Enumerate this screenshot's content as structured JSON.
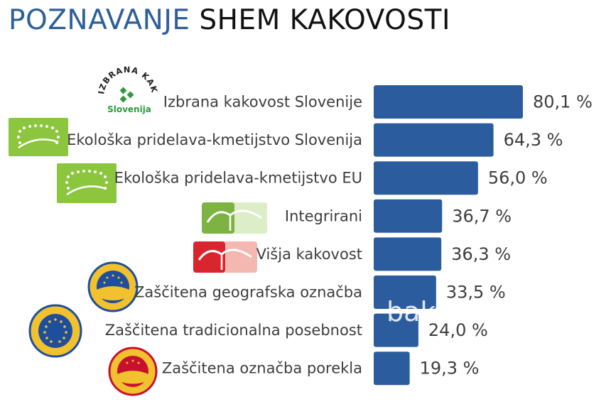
{
  "title": {
    "part1": "POZNAVANJE",
    "part2": "SHEM KAKOVOSTI"
  },
  "colors": {
    "title_accent": "#2e5f98",
    "bar": "#2b5c9d",
    "eu_green": "#8cc63f",
    "integ_green": "#7cb342",
    "visja_red": "#d9262e",
    "pgi_blue": "#1f4f9c",
    "pdo_red": "#c8102e",
    "gold": "#f2c12e"
  },
  "logo_text": {
    "izbrana": "IZBRANA KAKOVOST",
    "slovenija": "Slovenija"
  },
  "chart_data": {
    "type": "bar",
    "orientation": "horizontal",
    "categories": [
      "Izbrana kakovost Slovenije",
      "Ekološka pridelava-kmetijstvo Slovenija",
      "Ekološka pridelava-kmetijstvo EU",
      "Integrirani",
      "Višja kakovost",
      "Zaščitena geografska označba",
      "Zaščitena tradicionalna posebnost",
      "Zaščitena označba porekla"
    ],
    "values": [
      80.1,
      64.3,
      56.0,
      36.7,
      36.3,
      33.5,
      24.0,
      19.3
    ],
    "value_labels": [
      "80,1 %",
      "64,3 %",
      "56,0 %",
      "36,7 %",
      "36,3 %",
      "33,5 %",
      "24,0 %",
      "19,3 %"
    ],
    "logos": [
      "izbrana-kakovost-logo",
      "eu-organic-leaf-logo",
      "eu-organic-leaf-logo",
      "integrirani-logo",
      "visja-kakovost-logo",
      "pgi-seal-logo",
      "tsg-seal-logo",
      "pdo-seal-logo"
    ],
    "watermark": "bako",
    "xlim": [
      0,
      100
    ],
    "grid": false,
    "legend": "none"
  }
}
